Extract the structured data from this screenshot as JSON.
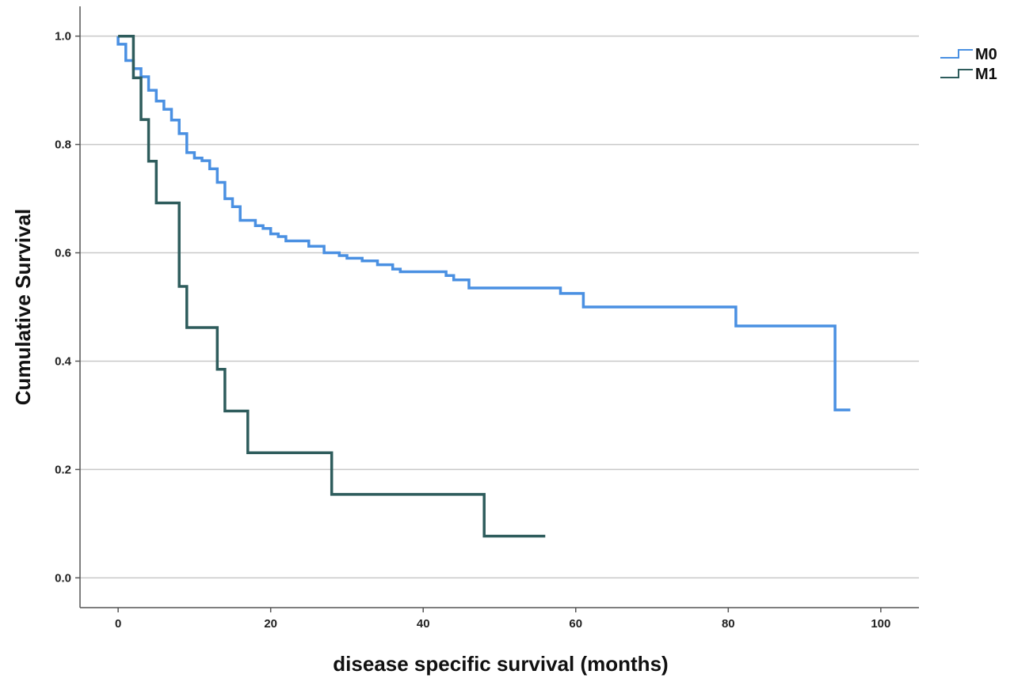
{
  "chart_data": {
    "type": "line",
    "subtype": "kaplan-meier step",
    "title": "",
    "xlabel": "disease specific survival (months)",
    "ylabel": "Cumulative Survival",
    "xlim": [
      -5,
      105
    ],
    "ylim": [
      -0.055,
      1.055
    ],
    "x_ticks": [
      0,
      20,
      40,
      60,
      80,
      100
    ],
    "x_tick_labels": [
      "0",
      "20",
      "40",
      "60",
      "80",
      "100"
    ],
    "y_ticks": [
      0.0,
      0.2,
      0.4,
      0.6,
      0.8,
      1.0
    ],
    "y_tick_labels": [
      "0.0",
      "0.2",
      "0.4",
      "0.6",
      "0.8",
      "1.0"
    ],
    "grid": "horizontal",
    "legend_position": "top-right",
    "series": [
      {
        "name": "M0",
        "color": "#4a90e2",
        "points": [
          [
            0,
            1.0
          ],
          [
            0,
            0.985
          ],
          [
            1,
            0.985
          ],
          [
            1,
            0.955
          ],
          [
            2,
            0.955
          ],
          [
            2,
            0.94
          ],
          [
            3,
            0.94
          ],
          [
            3,
            0.925
          ],
          [
            4,
            0.925
          ],
          [
            4,
            0.9
          ],
          [
            5,
            0.9
          ],
          [
            5,
            0.88
          ],
          [
            6,
            0.88
          ],
          [
            6,
            0.865
          ],
          [
            7,
            0.865
          ],
          [
            7,
            0.845
          ],
          [
            8,
            0.845
          ],
          [
            8,
            0.82
          ],
          [
            9,
            0.82
          ],
          [
            9,
            0.785
          ],
          [
            10,
            0.785
          ],
          [
            10,
            0.775
          ],
          [
            11,
            0.775
          ],
          [
            11,
            0.77
          ],
          [
            12,
            0.77
          ],
          [
            12,
            0.755
          ],
          [
            13,
            0.755
          ],
          [
            13,
            0.73
          ],
          [
            14,
            0.73
          ],
          [
            14,
            0.7
          ],
          [
            15,
            0.7
          ],
          [
            15,
            0.685
          ],
          [
            16,
            0.685
          ],
          [
            16,
            0.66
          ],
          [
            18,
            0.66
          ],
          [
            18,
            0.65
          ],
          [
            19,
            0.65
          ],
          [
            19,
            0.645
          ],
          [
            20,
            0.645
          ],
          [
            20,
            0.635
          ],
          [
            21,
            0.635
          ],
          [
            21,
            0.63
          ],
          [
            22,
            0.63
          ],
          [
            22,
            0.622
          ],
          [
            25,
            0.622
          ],
          [
            25,
            0.612
          ],
          [
            27,
            0.612
          ],
          [
            27,
            0.6
          ],
          [
            29,
            0.6
          ],
          [
            29,
            0.595
          ],
          [
            30,
            0.595
          ],
          [
            30,
            0.59
          ],
          [
            32,
            0.59
          ],
          [
            32,
            0.585
          ],
          [
            34,
            0.585
          ],
          [
            34,
            0.578
          ],
          [
            36,
            0.578
          ],
          [
            36,
            0.57
          ],
          [
            37,
            0.57
          ],
          [
            37,
            0.565
          ],
          [
            43,
            0.565
          ],
          [
            43,
            0.558
          ],
          [
            44,
            0.558
          ],
          [
            44,
            0.55
          ],
          [
            46,
            0.55
          ],
          [
            46,
            0.535
          ],
          [
            58,
            0.535
          ],
          [
            58,
            0.525
          ],
          [
            61,
            0.525
          ],
          [
            61,
            0.5
          ],
          [
            81,
            0.5
          ],
          [
            81,
            0.465
          ],
          [
            94,
            0.465
          ],
          [
            94,
            0.31
          ],
          [
            96,
            0.31
          ]
        ]
      },
      {
        "name": "M1",
        "color": "#2e5c5c",
        "points": [
          [
            0,
            1.0
          ],
          [
            2,
            1.0
          ],
          [
            2,
            0.923
          ],
          [
            3,
            0.923
          ],
          [
            3,
            0.846
          ],
          [
            4,
            0.846
          ],
          [
            4,
            0.769
          ],
          [
            5,
            0.769
          ],
          [
            5,
            0.692
          ],
          [
            8,
            0.692
          ],
          [
            8,
            0.538
          ],
          [
            9,
            0.538
          ],
          [
            9,
            0.462
          ],
          [
            13,
            0.462
          ],
          [
            13,
            0.385
          ],
          [
            14,
            0.385
          ],
          [
            14,
            0.308
          ],
          [
            17,
            0.308
          ],
          [
            17,
            0.231
          ],
          [
            28,
            0.231
          ],
          [
            28,
            0.154
          ],
          [
            48,
            0.154
          ],
          [
            48,
            0.077
          ],
          [
            56,
            0.077
          ]
        ]
      }
    ]
  }
}
